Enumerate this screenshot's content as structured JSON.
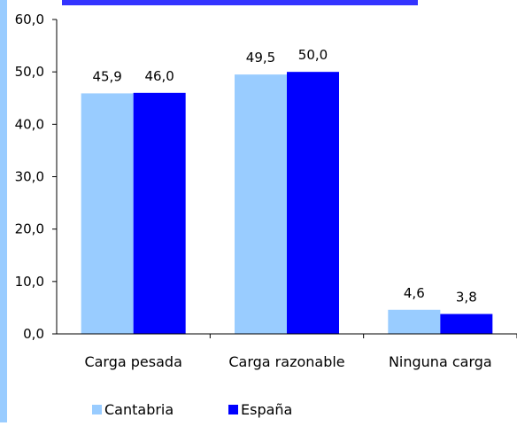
{
  "chart_data": {
    "type": "bar",
    "title": "",
    "categories": [
      "Carga pesada",
      "Carga razonable",
      "Ninguna carga"
    ],
    "series": [
      {
        "name": "Cantabria",
        "values": [
          45.9,
          49.5,
          4.6
        ],
        "color": "#99ccff"
      },
      {
        "name": "España",
        "values": [
          46.0,
          50.0,
          3.8
        ],
        "color": "#0000ff"
      }
    ],
    "value_labels": [
      [
        "45,9",
        "49,5",
        "4,6"
      ],
      [
        "46,0",
        "50,0",
        "3,8"
      ]
    ],
    "y_ticks": [
      "0,0",
      "10,0",
      "20,0",
      "30,0",
      "40,0",
      "50,0",
      "60,0"
    ],
    "ylim": [
      0,
      60
    ],
    "grid": false,
    "legend_position": "bottom",
    "xlabel": "",
    "ylabel": ""
  },
  "colors": {
    "left_stripe": "#99ccff",
    "title_fragment": "#3333ff",
    "axis": "#000000"
  }
}
